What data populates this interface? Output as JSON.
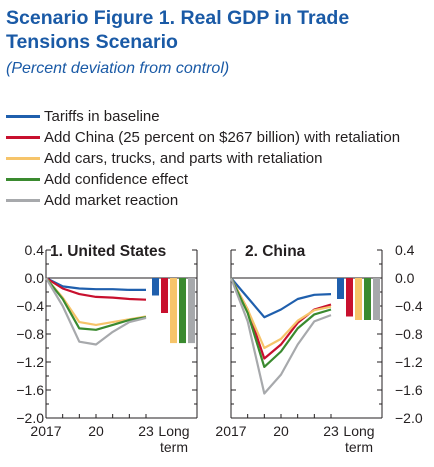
{
  "header": {
    "title": "Scenario Figure 1.  Real GDP in Trade Tensions Scenario",
    "subtitle": "(Percent deviation from control)"
  },
  "colors": {
    "tariffs": "#1f5fad",
    "china": "#c8102e",
    "cars": "#f6c46a",
    "confidence": "#3a8a2f",
    "market": "#a7a9ac"
  },
  "legend": [
    {
      "label": "Tariffs in baseline",
      "color": "#1f5fad"
    },
    {
      "label": "Add China (25 percent on $267 billion) with retaliation",
      "color": "#c8102e"
    },
    {
      "label": "Add cars, trucks, and parts with retaliation",
      "color": "#f6c46a"
    },
    {
      "label": "Add confidence effect",
      "color": "#3a8a2f"
    },
    {
      "label": "Add market reaction",
      "color": "#a7a9ac"
    }
  ],
  "chart_data": [
    {
      "type": "line",
      "title": "1. United States",
      "x": [
        2017,
        2018,
        2019,
        2020,
        2021,
        2022,
        2023
      ],
      "x_tick_labels": [
        "2017",
        "20",
        "23"
      ],
      "long_term_label": [
        "Long",
        "term"
      ],
      "y_ticks": [
        "0.4",
        "0.0",
        "−0.4",
        "−0.8",
        "−1.2",
        "−1.6",
        "−2.0"
      ],
      "ylim": [
        -2.0,
        0.4
      ],
      "series": [
        {
          "name": "Tariffs in baseline",
          "values": [
            0.0,
            -0.12,
            -0.15,
            -0.16,
            -0.16,
            -0.17,
            -0.17
          ],
          "long_term": -0.25
        },
        {
          "name": "Add China (25 percent on $267 billion) with retaliation",
          "values": [
            0.0,
            -0.15,
            -0.23,
            -0.27,
            -0.28,
            -0.3,
            -0.31
          ],
          "long_term": -0.5
        },
        {
          "name": "Add cars, trucks, and parts with retaliation",
          "values": [
            0.0,
            -0.28,
            -0.63,
            -0.67,
            -0.63,
            -0.59,
            -0.55
          ],
          "long_term": -0.93
        },
        {
          "name": "Add confidence effect",
          "values": [
            0.0,
            -0.3,
            -0.72,
            -0.74,
            -0.67,
            -0.6,
            -0.56
          ],
          "long_term": -0.93
        },
        {
          "name": "Add market reaction",
          "values": [
            0.0,
            -0.4,
            -0.91,
            -0.95,
            -0.77,
            -0.63,
            -0.57
          ],
          "long_term": -0.93
        }
      ]
    },
    {
      "type": "line",
      "title": "2. China",
      "x": [
        2017,
        2018,
        2019,
        2020,
        2021,
        2022,
        2023
      ],
      "x_tick_labels": [
        "2017",
        "20",
        "23"
      ],
      "long_term_label": [
        "Long",
        "term"
      ],
      "y_ticks": [
        "0.4",
        "0.0",
        "−0.4",
        "−0.8",
        "−1.2",
        "−1.6",
        "−2.0"
      ],
      "ylim": [
        -2.0,
        0.4
      ],
      "series": [
        {
          "name": "Tariffs in baseline",
          "values": [
            0.0,
            -0.28,
            -0.56,
            -0.45,
            -0.3,
            -0.24,
            -0.23
          ],
          "long_term": -0.3
        },
        {
          "name": "Add China (25 percent on $267 billion) with retaliation",
          "values": [
            0.0,
            -0.45,
            -1.15,
            -0.95,
            -0.64,
            -0.45,
            -0.38
          ],
          "long_term": -0.55
        },
        {
          "name": "Add cars, trucks, and parts with retaliation",
          "values": [
            0.0,
            -0.45,
            -1.0,
            -0.87,
            -0.61,
            -0.46,
            -0.41
          ],
          "long_term": -0.6
        },
        {
          "name": "Add confidence effect",
          "values": [
            0.0,
            -0.5,
            -1.27,
            -1.05,
            -0.72,
            -0.52,
            -0.45
          ],
          "long_term": -0.6
        },
        {
          "name": "Add market reaction",
          "values": [
            0.0,
            -0.62,
            -1.65,
            -1.38,
            -0.95,
            -0.62,
            -0.53
          ],
          "long_term": -0.6
        }
      ]
    }
  ]
}
